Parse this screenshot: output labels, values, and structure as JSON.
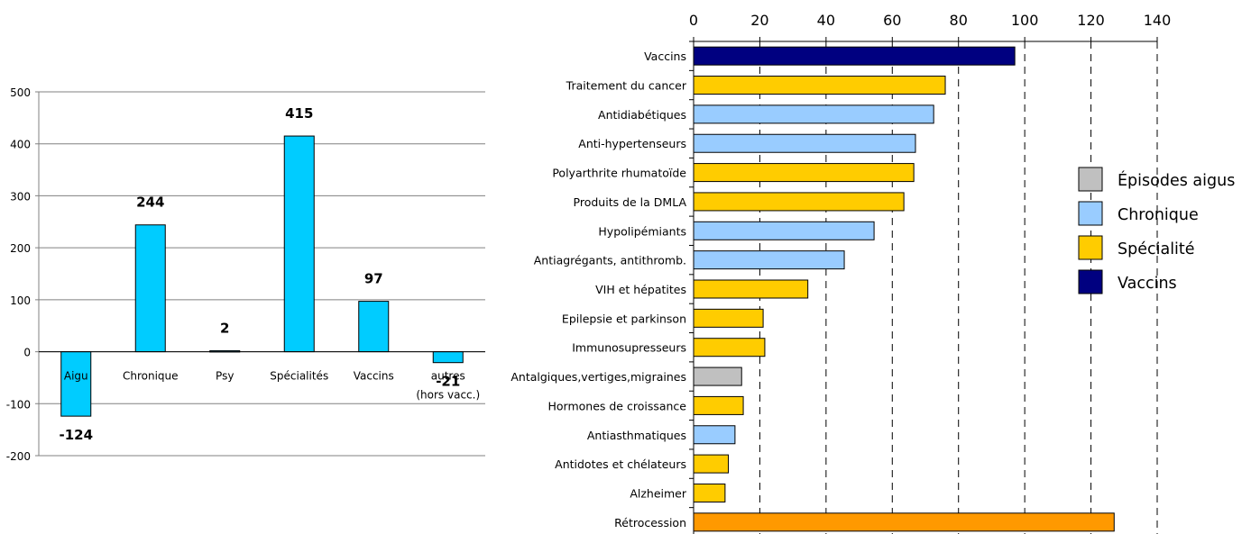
{
  "chart_data": [
    {
      "type": "bar",
      "title": "",
      "xlabel": "",
      "ylabel": "",
      "ylim": [
        -200,
        500
      ],
      "yticks": [
        -200,
        -100,
        0,
        100,
        200,
        300,
        400,
        500
      ],
      "grid": true,
      "bar_color": "#00ccff",
      "categories": [
        "Aigu",
        "Chronique",
        "Psy",
        "Spécialités",
        "Vaccins",
        "autres (hors vacc.)"
      ],
      "category_lines": [
        [
          "Aigu"
        ],
        [
          "Chronique"
        ],
        [
          "Psy"
        ],
        [
          "Spécialités"
        ],
        [
          "Vaccins"
        ],
        [
          "autres",
          "(hors vacc.)"
        ]
      ],
      "values": [
        -124,
        244,
        2,
        415,
        97,
        -21
      ],
      "data_labels": [
        "-124",
        "244",
        "2",
        "415",
        "97",
        "-21"
      ]
    },
    {
      "type": "bar",
      "orientation": "horizontal",
      "title": "",
      "xlim": [
        0,
        140
      ],
      "xticks": [
        0,
        20,
        40,
        60,
        80,
        100,
        120,
        140
      ],
      "grid": "dashed vertical",
      "legend_position": "right",
      "legend": [
        {
          "key": "aigu",
          "label": "Épisodes aigus",
          "color": "#c0c0c0"
        },
        {
          "key": "chronique",
          "label": "Chronique",
          "color": "#99ccff"
        },
        {
          "key": "specialite",
          "label": "Spécialité",
          "color": "#ffcc00"
        },
        {
          "key": "vaccins",
          "label": "Vaccins",
          "color": "#000080"
        }
      ],
      "bars": [
        {
          "label": "Vaccins",
          "value": 97,
          "group": "vaccins"
        },
        {
          "label": "Traitement du cancer",
          "value": 76,
          "group": "specialite"
        },
        {
          "label": "Antidiabétiques",
          "value": 72.5,
          "group": "chronique"
        },
        {
          "label": "Anti-hypertenseurs",
          "value": 67,
          "group": "chronique"
        },
        {
          "label": "Polyarthrite rhumatoïde",
          "value": 66.5,
          "group": "specialite"
        },
        {
          "label": "Produits de la DMLA",
          "value": 63.5,
          "group": "specialite"
        },
        {
          "label": "Hypolipémiants",
          "value": 54.5,
          "group": "chronique"
        },
        {
          "label": "Antiagrégants, antithromb.",
          "value": 45.5,
          "group": "chronique"
        },
        {
          "label": "VIH et hépatites",
          "value": 34.5,
          "group": "specialite"
        },
        {
          "label": "Epilepsie et parkinson",
          "value": 21,
          "group": "specialite"
        },
        {
          "label": "Immunosupresseurs",
          "value": 21.5,
          "group": "specialite"
        },
        {
          "label": "Antalgiques,vertiges,migraines",
          "value": 14.5,
          "group": "aigu"
        },
        {
          "label": "Hormones de croissance",
          "value": 15,
          "group": "specialite"
        },
        {
          "label": "Antiasthmatiques",
          "value": 12.5,
          "group": "chronique"
        },
        {
          "label": "Antidotes et chélateurs",
          "value": 10.5,
          "group": "specialite"
        },
        {
          "label": "Alzheimer",
          "value": 9.5,
          "group": "specialite"
        },
        {
          "label": "Rétrocession",
          "value": 127,
          "group": "retrocession",
          "color": "#ff9900"
        }
      ]
    }
  ]
}
